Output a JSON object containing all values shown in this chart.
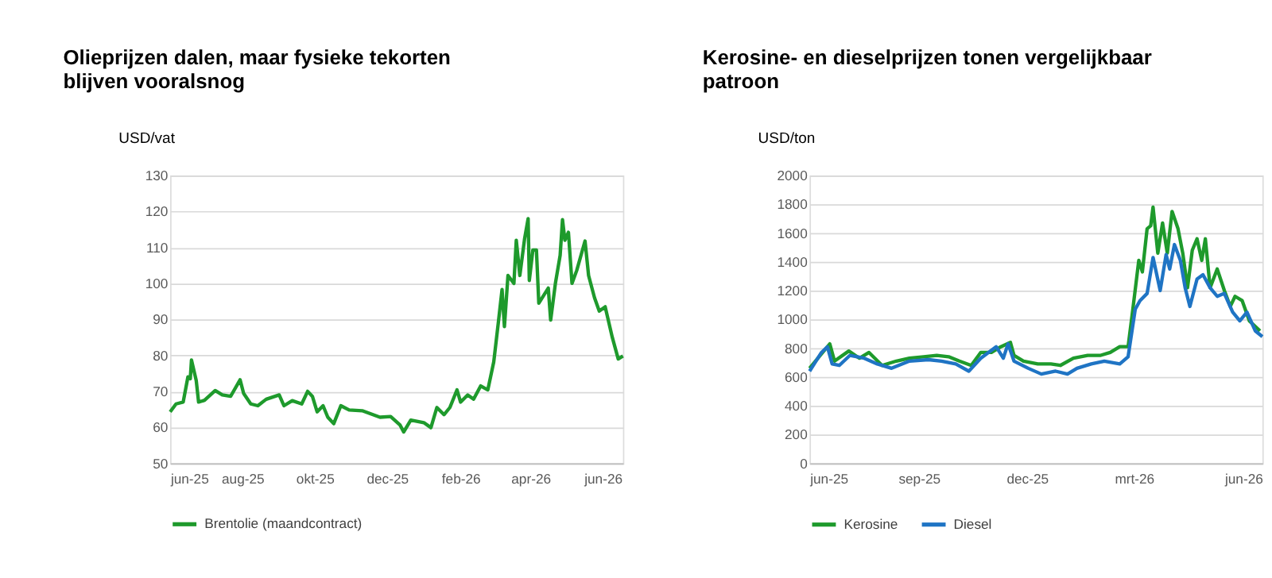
{
  "chart_data": [
    {
      "type": "line",
      "title": "Olieprijzen dalen, maar fysieke tekorten blijven vooralsnog",
      "ylabel": "USD/vat",
      "xlim": [
        "2025-06-01",
        "2026-06-18"
      ],
      "xticks": [
        {
          "value": "2025-06-01",
          "label": "jun-25"
        },
        {
          "value": "2025-08-01",
          "label": "aug-25"
        },
        {
          "value": "2025-10-01",
          "label": "okt-25"
        },
        {
          "value": "2025-12-01",
          "label": "dec-25"
        },
        {
          "value": "2026-02-01",
          "label": "feb-26"
        },
        {
          "value": "2026-04-01",
          "label": "apr-26"
        },
        {
          "value": "2026-06-01",
          "label": "jun-26"
        }
      ],
      "ylim": [
        50,
        130
      ],
      "yticks": [
        50,
        60,
        70,
        80,
        90,
        100,
        110,
        120,
        130
      ],
      "grid": "y",
      "legend": "bottom",
      "line_style": "solid",
      "series": [
        {
          "name": "Brentolie (maandcontract)",
          "color": "#1e9a2c",
          "x": [
            "2025-06-01",
            "2025-06-06",
            "2025-06-12",
            "2025-06-16",
            "2025-06-18",
            "2025-06-19",
            "2025-06-23",
            "2025-06-25",
            "2025-06-30",
            "2025-07-09",
            "2025-07-15",
            "2025-07-22",
            "2025-07-30",
            "2025-08-02",
            "2025-08-08",
            "2025-08-14",
            "2025-08-21",
            "2025-09-01",
            "2025-09-05",
            "2025-09-12",
            "2025-09-20",
            "2025-09-25",
            "2025-09-29",
            "2025-10-03",
            "2025-10-08",
            "2025-10-12",
            "2025-10-17",
            "2025-10-23",
            "2025-10-30",
            "2025-11-10",
            "2025-11-25",
            "2025-12-04",
            "2025-12-12",
            "2025-12-15",
            "2025-12-21",
            "2026-01-01",
            "2026-01-07",
            "2026-01-12",
            "2026-01-18",
            "2026-01-23",
            "2026-01-29",
            "2026-02-01",
            "2026-02-07",
            "2026-02-12",
            "2026-02-18",
            "2026-02-24",
            "2026-03-01",
            "2026-03-05",
            "2026-03-08",
            "2026-03-10",
            "2026-03-13",
            "2026-03-18",
            "2026-03-20",
            "2026-03-23",
            "2026-03-27",
            "2026-03-30",
            "2026-03-31",
            "2026-04-03",
            "2026-04-06",
            "2026-04-08",
            "2026-04-12",
            "2026-04-16",
            "2026-04-18",
            "2026-04-22",
            "2026-04-26",
            "2026-04-28",
            "2026-04-30",
            "2026-05-03",
            "2026-05-06",
            "2026-05-10",
            "2026-05-17",
            "2026-05-20",
            "2026-05-25",
            "2026-05-29",
            "2026-06-03",
            "2026-06-09",
            "2026-06-14",
            "2026-06-18"
          ],
          "values": [
            64.3,
            66.5,
            67,
            74,
            73.5,
            78.7,
            73,
            67,
            67.5,
            70.2,
            69,
            68.6,
            73.2,
            69.4,
            66.5,
            66,
            67.8,
            69,
            66,
            67.4,
            66.5,
            70,
            68.6,
            64.3,
            66,
            62.8,
            61,
            66,
            64.8,
            64.6,
            62.8,
            63,
            60.6,
            58.7,
            62,
            61.3,
            59.9,
            65.5,
            63.5,
            65.5,
            70.4,
            67,
            69,
            67.8,
            71.5,
            70.4,
            78.2,
            89.5,
            98.3,
            88,
            102.2,
            100,
            112,
            102.2,
            112.4,
            118,
            100.8,
            109.3,
            109.3,
            94.5,
            96.6,
            98.7,
            89.8,
            100,
            107.8,
            117.7,
            112,
            114.2,
            100,
            103.6,
            111.8,
            102.2,
            96,
            92.3,
            93.5,
            85,
            79,
            79.8
          ]
        }
      ]
    },
    {
      "type": "line",
      "title": "Kerosine- en dieselprijzen tonen vergelijkbaar patroon",
      "ylabel": "USD/ton",
      "xlim": [
        "2025-06-01",
        "2026-06-17"
      ],
      "xticks": [
        {
          "value": "2025-06-01",
          "label": "jun-25"
        },
        {
          "value": "2025-09-01",
          "label": "sep-25"
        },
        {
          "value": "2025-12-01",
          "label": "dec-25"
        },
        {
          "value": "2026-03-01",
          "label": "mrt-26"
        },
        {
          "value": "2026-06-01",
          "label": "jun-26"
        }
      ],
      "ylim": [
        0,
        2000
      ],
      "yticks": [
        0,
        200,
        400,
        600,
        800,
        1000,
        1200,
        1400,
        1600,
        1800,
        2000
      ],
      "grid": "y",
      "legend": "bottom",
      "line_style": "solid",
      "series": [
        {
          "name": "Kerosine",
          "color": "#1e9a2c",
          "x": [
            "2025-06-01",
            "2025-06-12",
            "2025-06-18",
            "2025-06-22",
            "2025-07-04",
            "2025-07-13",
            "2025-07-21",
            "2025-08-01",
            "2025-08-13",
            "2025-08-24",
            "2025-09-05",
            "2025-09-16",
            "2025-09-26",
            "2025-10-05",
            "2025-10-15",
            "2025-10-23",
            "2025-11-01",
            "2025-11-09",
            "2025-11-17",
            "2025-11-20",
            "2025-11-28",
            "2025-12-10",
            "2025-12-21",
            "2025-12-29",
            "2026-01-09",
            "2026-01-21",
            "2026-02-01",
            "2026-02-09",
            "2026-02-17",
            "2026-02-24",
            "2026-02-28",
            "2026-03-05",
            "2026-03-08",
            "2026-03-12",
            "2026-03-15",
            "2026-03-17",
            "2026-03-21",
            "2026-03-25",
            "2026-03-29",
            "2026-04-02",
            "2026-04-07",
            "2026-04-11",
            "2026-04-15",
            "2026-04-19",
            "2026-04-23",
            "2026-04-27",
            "2026-04-30",
            "2026-05-04",
            "2026-05-10",
            "2026-05-16",
            "2026-05-21",
            "2026-05-25",
            "2026-05-31",
            "2026-06-06",
            "2026-06-15"
          ],
          "values": [
            660,
            770,
            830,
            710,
            780,
            730,
            770,
            680,
            710,
            730,
            740,
            750,
            740,
            710,
            680,
            770,
            770,
            810,
            840,
            750,
            710,
            690,
            690,
            680,
            730,
            750,
            750,
            770,
            810,
            810,
            1070,
            1410,
            1330,
            1630,
            1650,
            1780,
            1460,
            1670,
            1460,
            1750,
            1630,
            1460,
            1220,
            1480,
            1560,
            1410,
            1560,
            1220,
            1350,
            1200,
            1090,
            1160,
            1130,
            990,
            920
          ]
        },
        {
          "name": "Diesel",
          "color": "#1f74c4",
          "x": [
            "2025-06-01",
            "2025-06-11",
            "2025-06-16",
            "2025-06-20",
            "2025-06-26",
            "2025-07-05",
            "2025-07-17",
            "2025-07-28",
            "2025-08-09",
            "2025-08-24",
            "2025-09-09",
            "2025-09-20",
            "2025-10-02",
            "2025-10-13",
            "2025-10-23",
            "2025-11-05",
            "2025-11-11",
            "2025-11-15",
            "2025-11-20",
            "2025-12-02",
            "2025-12-13",
            "2025-12-25",
            "2026-01-04",
            "2026-01-12",
            "2026-01-24",
            "2026-02-04",
            "2026-02-17",
            "2026-02-24",
            "2026-03-02",
            "2026-03-06",
            "2026-03-12",
            "2026-03-17",
            "2026-03-23",
            "2026-03-28",
            "2026-03-31",
            "2026-04-04",
            "2026-04-09",
            "2026-04-13",
            "2026-04-17",
            "2026-04-23",
            "2026-04-28",
            "2026-05-04",
            "2026-05-10",
            "2026-05-16",
            "2026-05-23",
            "2026-05-29",
            "2026-06-04",
            "2026-06-11",
            "2026-06-17"
          ],
          "values": [
            640,
            770,
            810,
            690,
            680,
            750,
            730,
            690,
            660,
            710,
            720,
            710,
            690,
            640,
            730,
            810,
            730,
            830,
            710,
            660,
            620,
            640,
            620,
            660,
            690,
            710,
            690,
            740,
            1070,
            1130,
            1180,
            1430,
            1200,
            1450,
            1350,
            1520,
            1410,
            1220,
            1090,
            1280,
            1310,
            1220,
            1160,
            1180,
            1050,
            990,
            1050,
            920,
            880
          ]
        }
      ]
    }
  ]
}
